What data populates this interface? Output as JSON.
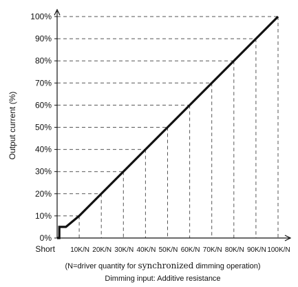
{
  "chart_data": {
    "type": "line",
    "ylabel": "Output current (%)",
    "x_categories": [
      "Short",
      "10K/N",
      "20K/N",
      "30K/N",
      "40K/N",
      "50K/N",
      "60K/N",
      "70K/N",
      "80K/N",
      "90K/N",
      "100K/N"
    ],
    "y_ticks": [
      "0%",
      "10%",
      "20%",
      "30%",
      "40%",
      "50%",
      "60%",
      "70%",
      "80%",
      "90%",
      "100%"
    ],
    "ylim": [
      0,
      100
    ],
    "xlim": [
      0,
      100
    ],
    "grid": "dashed reference lines from each tick to the curve",
    "series": [
      {
        "values": [
          {
            "x": 0,
            "y": 0
          },
          {
            "x": 1,
            "y": 0
          },
          {
            "x": 1,
            "y": 5
          },
          {
            "x": 4,
            "y": 5
          },
          {
            "x": 10,
            "y": 10
          },
          {
            "x": 100,
            "y": 100
          }
        ]
      }
    ],
    "guide_points": [
      {
        "x": 10,
        "y": 10
      },
      {
        "x": 20,
        "y": 20
      },
      {
        "x": 30,
        "y": 30
      },
      {
        "x": 40,
        "y": 40
      },
      {
        "x": 50,
        "y": 50
      },
      {
        "x": 60,
        "y": 60
      },
      {
        "x": 70,
        "y": 70
      },
      {
        "x": 80,
        "y": 80
      },
      {
        "x": 90,
        "y": 90
      },
      {
        "x": 100,
        "y": 100
      }
    ],
    "line_color": "#111111",
    "guide_color": "#555555"
  },
  "caption": {
    "line1_prefix": "(N=driver quantity for ",
    "line1_serif": "synchronized",
    "line1_suffix": " dimming operation)",
    "line2": "Dimming input: Additive resistance"
  }
}
